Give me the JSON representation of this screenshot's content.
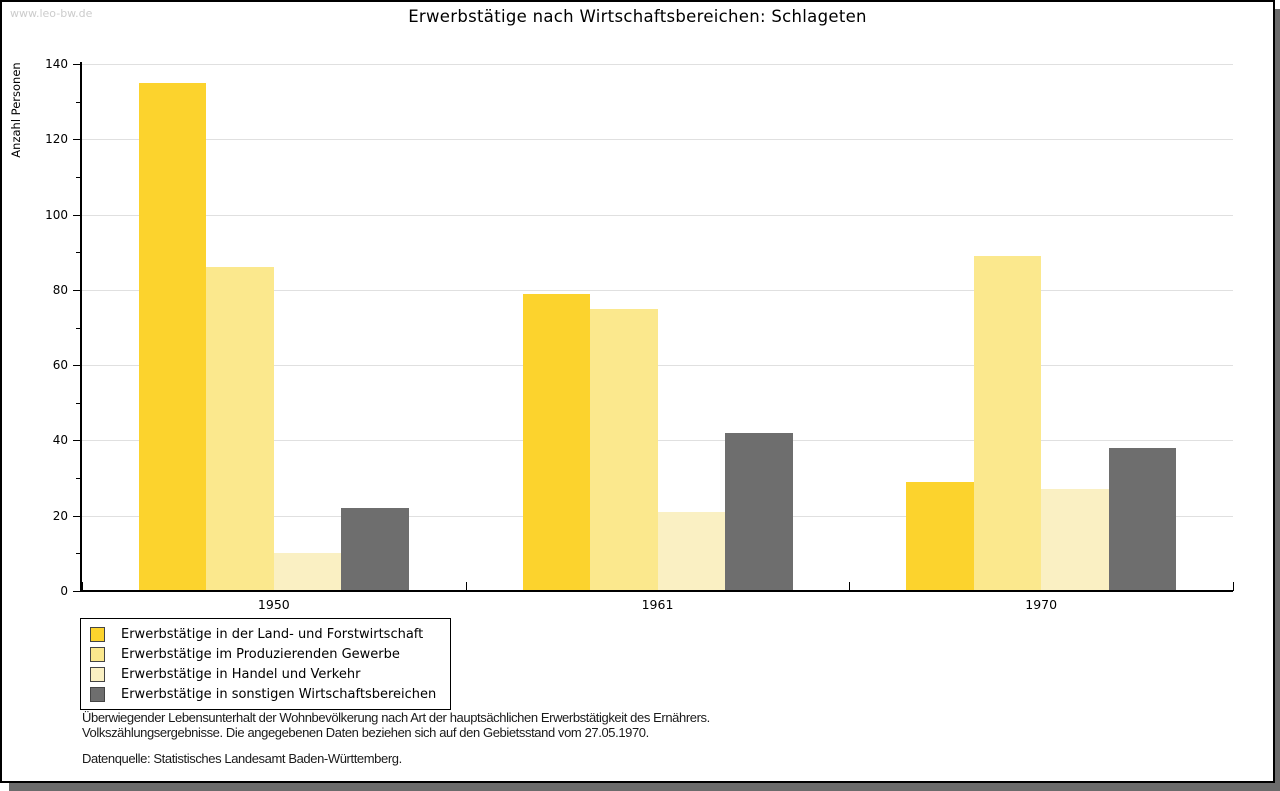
{
  "watermark": "www.leo-bw.de",
  "title": "Erwerbstätige nach Wirtschaftsbereichen: Schlageten",
  "chart_data": {
    "type": "bar",
    "title": "Erwerbstätige nach Wirtschaftsbereichen: Schlageten",
    "xlabel": "",
    "ylabel": "Anzahl Personen",
    "ylim": [
      0,
      140
    ],
    "ytick_step": 20,
    "ytick_minor_step": 10,
    "grid": true,
    "legend_position": "bottom-left",
    "categories": [
      "1950",
      "1961",
      "1970"
    ],
    "series": [
      {
        "name": "Erwerbstätige in der Land- und Forstwirtschaft",
        "color": "#fcd32d",
        "values": [
          135,
          79,
          29
        ]
      },
      {
        "name": "Erwerbstätige im Produzierenden Gewerbe",
        "color": "#fbe88d",
        "values": [
          86,
          75,
          89
        ]
      },
      {
        "name": "Erwerbstätige in Handel und Verkehr",
        "color": "#faf0c3",
        "values": [
          10,
          21,
          27
        ]
      },
      {
        "name": "Erwerbstätige in sonstigen Wirtschaftsbereichen",
        "color": "#6e6e6e",
        "values": [
          22,
          42,
          38
        ]
      }
    ]
  },
  "footnotes": {
    "line1": "Überwiegender Lebensunterhalt der Wohnbevölkerung nach Art der hauptsächlichen Erwerbstätigkeit des Ernährers.",
    "line2": "Volkszählungsergebnisse. Die angegebenen Daten beziehen sich auf den Gebietsstand vom 27.05.1970.",
    "source": "Datenquelle: Statistisches Landesamt Baden-Württemberg."
  },
  "colors": {
    "gridline": "#e0e0e0",
    "axis": "#000000",
    "watermark": "#cccccc",
    "shadow": "#6b6b6b"
  }
}
